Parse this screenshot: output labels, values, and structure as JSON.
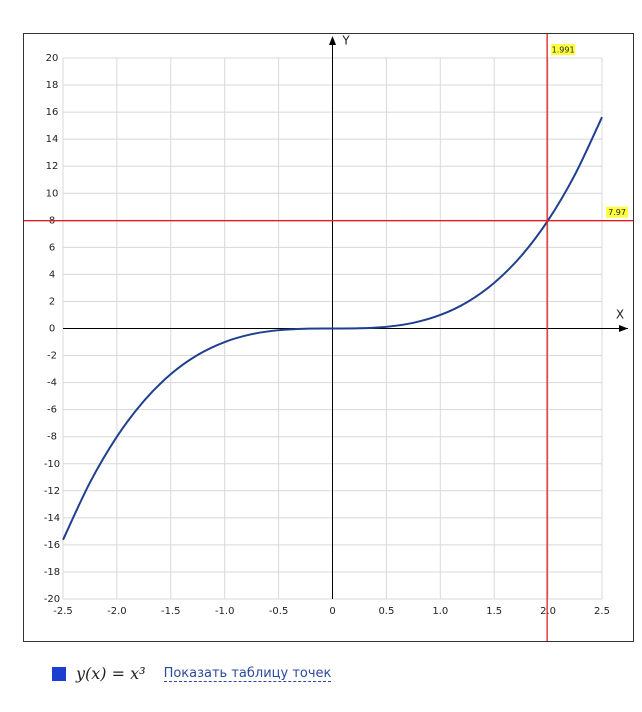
{
  "chart_data": {
    "type": "line",
    "x": [
      -2.5,
      -2.25,
      -2,
      -1.75,
      -1.5,
      -1.25,
      -1,
      -0.75,
      -0.5,
      -0.25,
      0,
      0.25,
      0.5,
      0.75,
      1,
      1.25,
      1.5,
      1.75,
      2,
      2.25,
      2.5
    ],
    "series": [
      {
        "name": "y(x) = x³",
        "color": "#1f3f8f",
        "values": [
          -15.625,
          -11.391,
          -8,
          -5.359,
          -3.375,
          -1.953,
          -1,
          -0.422,
          -0.125,
          -0.016,
          0,
          0.016,
          0.125,
          0.422,
          1,
          1.953,
          3.375,
          5.359,
          8,
          11.391,
          15.625
        ]
      }
    ],
    "xlim": [
      -2.5,
      2.5
    ],
    "xticks": [
      -2.5,
      {
        "value": -2,
        "label": "-2.0"
      },
      -1.5,
      {
        "value": -1,
        "label": "-1.0"
      },
      -0.5,
      0,
      0.5,
      {
        "value": 1,
        "label": "1.0"
      },
      1.5,
      {
        "value": 2,
        "label": "2.0"
      },
      2.5
    ],
    "ylim": [
      -20,
      20
    ],
    "yticks": [
      -20,
      -18,
      -16,
      -14,
      -12,
      -10,
      -8,
      -6,
      -4,
      -2,
      0,
      2,
      4,
      6,
      8,
      10,
      12,
      14,
      16,
      18,
      20
    ],
    "xlabel": "X",
    "ylabel": "Y",
    "grid": true,
    "crosshair": {
      "x": 1.991,
      "y": 7.97,
      "color": "#e02020"
    },
    "link": "Показать таблицу точек"
  }
}
